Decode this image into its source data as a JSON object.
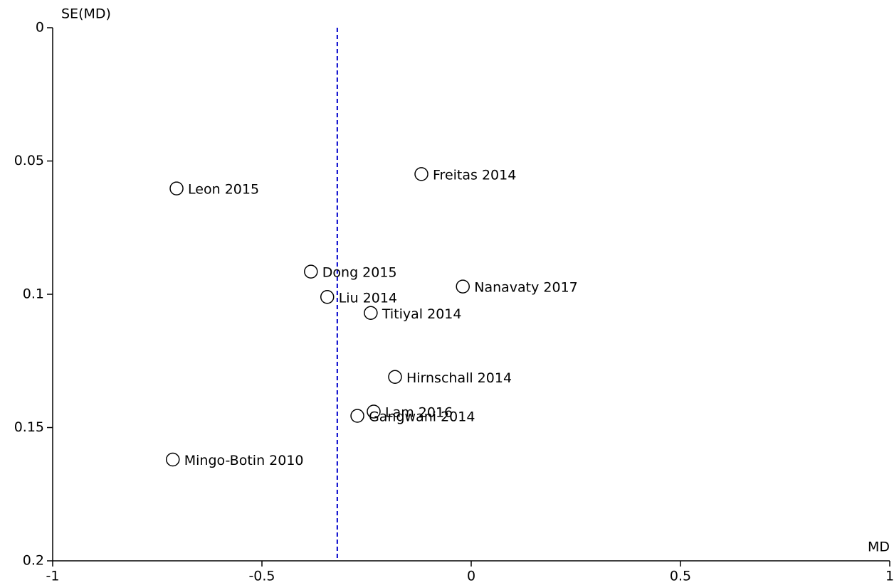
{
  "chart_data": {
    "type": "scatter",
    "y_axis_label": "SE(MD)",
    "x_axis_label": "MD",
    "point_labels": [
      "Leon 2015",
      "Freitas 2014",
      "Dong 2015",
      "Nanavaty 2017",
      "Liu 2014",
      "Titiyal 2014",
      "Hirnschall 2014",
      "Lam 2016",
      "Gangwani 2014",
      "Mingo-Botin 2010"
    ],
    "x": [
      -0.704,
      -0.119,
      -0.383,
      -0.02,
      -0.344,
      -0.24,
      -0.182,
      -0.233,
      -0.272,
      -0.713
    ],
    "values": [
      0.0603,
      0.0549,
      0.0915,
      0.0971,
      0.101,
      0.107,
      0.131,
      0.144,
      0.1456,
      0.162
    ],
    "marker_color": "#000000",
    "reference_line": {
      "x": -0.32,
      "color": "#0000cc"
    },
    "xlim": [
      -1,
      1
    ],
    "xticks": [
      -1,
      -0.5,
      0,
      0.5,
      1
    ],
    "ylim": [
      0,
      0.2
    ],
    "yticks": [
      0,
      0.05,
      0.1,
      0.15,
      0.2
    ],
    "y_inverted": true,
    "grid": false
  }
}
